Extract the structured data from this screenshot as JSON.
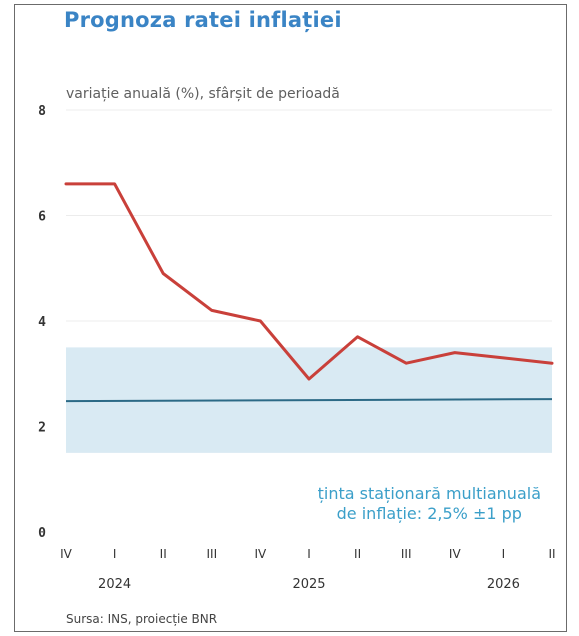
{
  "chart_data": {
    "type": "line",
    "title": "Prognoza ratei inflației",
    "subtitle": "variație anuală (%), sfârșit de perioadă",
    "ylim": [
      0,
      8
    ],
    "yticks": [
      0,
      2,
      4,
      6,
      8
    ],
    "x_quarters": [
      "IV",
      "I",
      "II",
      "III",
      "IV",
      "I",
      "II",
      "III",
      "IV",
      "I",
      "II"
    ],
    "x_years": [
      {
        "label": "2024",
        "index": 1
      },
      {
        "label": "2025",
        "index": 5
      },
      {
        "label": "2026",
        "index": 9
      }
    ],
    "series": [
      {
        "values": [
          6.6,
          6.6,
          4.9,
          4.2,
          4.0,
          2.9,
          3.7,
          3.2,
          3.4,
          3.3,
          3.2
        ],
        "color": "#c9403a"
      }
    ],
    "target": {
      "center": 2.5,
      "low": 1.5,
      "high": 3.5,
      "band_color": "#d9eaf3",
      "line_color": "#2c6a86",
      "label_line1": "ținta staționară multianuală",
      "label_line2": "de inflație: 2,5% ±1 pp"
    },
    "grid": true,
    "source": "Sursa: INS, proiecție BNR"
  }
}
